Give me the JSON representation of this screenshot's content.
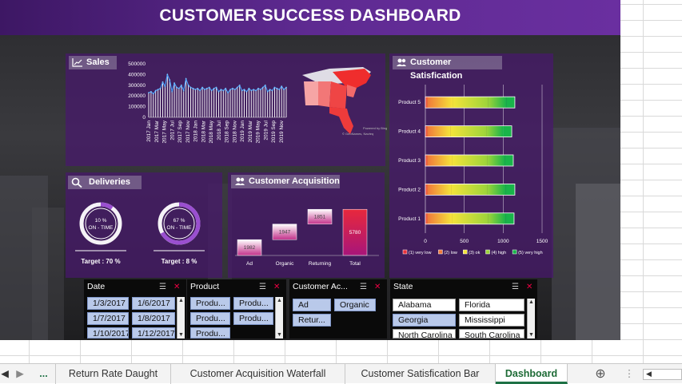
{
  "title": "CUSTOMER SUCCESS DASHBOARD",
  "panels": {
    "sales": "Sales",
    "deliveries": "Deliveries",
    "acquisition": "Customer Acquisition",
    "satisfaction": "Customer Satisfication"
  },
  "map_credit_1": "Powered by Bing",
  "map_credit_2": "© GeoNames, Navteq",
  "deliveries": {
    "gauge1": {
      "pct": 0.1,
      "line1": "10 %",
      "line2": "ON - TIME",
      "target": "Target : 70 %"
    },
    "gauge2": {
      "pct": 0.67,
      "line1": "67 %",
      "line2": "ON - TIME",
      "target": "Target : 8 %"
    }
  },
  "chart_data": [
    {
      "type": "line",
      "title": "Sales",
      "y_ticks": [
        "500000",
        "400000",
        "300000",
        "200000",
        "100000",
        "0"
      ],
      "ylim": [
        0,
        500000
      ],
      "x_labels": [
        "2017 Jan",
        "2017 Mar",
        "2017 May",
        "2017 Jul",
        "2017 Sep",
        "2017 Nov",
        "2018 Jan",
        "2018 Mar",
        "2018 May",
        "2018 Jul",
        "2018 Sep",
        "2018 Nov",
        "2019 Jan",
        "2019 Mar",
        "2019 May",
        "2019 Jul",
        "2019 Sep",
        "2019 Nov"
      ],
      "values": [
        230000,
        240000,
        220000,
        250000,
        260000,
        270000,
        330000,
        290000,
        400000,
        350000,
        240000,
        320000,
        280000,
        270000,
        300000,
        250000,
        360000,
        300000,
        280000,
        270000,
        260000,
        270000,
        250000,
        280000,
        260000,
        270000,
        280000,
        250000,
        270000,
        280000,
        240000,
        260000,
        250000,
        270000,
        230000,
        260000,
        270000,
        260000,
        280000,
        300000,
        250000,
        260000,
        240000,
        270000,
        250000,
        260000,
        250000,
        270000,
        260000,
        280000,
        300000,
        240000,
        260000,
        250000,
        280000,
        270000,
        260000,
        290000,
        260000,
        280000
      ]
    },
    {
      "type": "bar",
      "title": "Customer Acquisition",
      "categories": [
        "Ad",
        "Organic",
        "Returning",
        "Total"
      ],
      "values": [
        1982,
        1947,
        1851,
        5780
      ],
      "labels": [
        "1982",
        "1947",
        "1851",
        "5780"
      ],
      "ylim": [
        0,
        6200
      ]
    },
    {
      "type": "bar",
      "title": "Customer Satisfication",
      "categories": [
        "Product 5",
        "Product 4",
        "Product 3",
        "Product 2",
        "Product 1"
      ],
      "series": [
        {
          "name": "(1) very low",
          "color": "#e8323c",
          "values": [
            30,
            30,
            30,
            30,
            30
          ]
        },
        {
          "name": "(2) low",
          "color": "#f07a3a",
          "values": [
            320,
            290,
            310,
            300,
            310
          ]
        },
        {
          "name": "(3) ok",
          "color": "#f5e33a",
          "values": [
            460,
            470,
            460,
            470,
            470
          ]
        },
        {
          "name": "(4) high",
          "color": "#9bd43a",
          "values": [
            230,
            210,
            220,
            230,
            220
          ]
        },
        {
          "name": "(5) very high",
          "color": "#19b44a",
          "values": [
            110,
            110,
            110,
            120,
            110
          ]
        }
      ],
      "x_ticks": [
        "0",
        "500",
        "1000",
        "1500"
      ],
      "xlim": [
        0,
        1500
      ]
    }
  ],
  "slicers": {
    "date": {
      "header": "Date",
      "items": [
        "1/3/2017",
        "1/6/2017",
        "1/7/2017",
        "1/8/2017",
        "1/10/2017",
        "1/12/2017"
      ]
    },
    "product": {
      "header": "Product",
      "items": [
        "Produ...",
        "Produ...",
        "Produ...",
        "Produ...",
        "Produ..."
      ]
    },
    "acq": {
      "header": "Customer Ac...",
      "items": [
        "Ad",
        "Organic",
        "Retur..."
      ]
    },
    "state": {
      "header": "State",
      "items": [
        "Alabama",
        "Florida",
        "Georgia",
        "Mississippi",
        "North Carolina",
        "South Carolina"
      ]
    }
  },
  "tabs": {
    "more": "...",
    "t1": "Return Rate Daught",
    "t2": "Customer Acquisition Waterfall",
    "t3": "Customer Satisfication Bar",
    "t4": "Dashboard"
  }
}
